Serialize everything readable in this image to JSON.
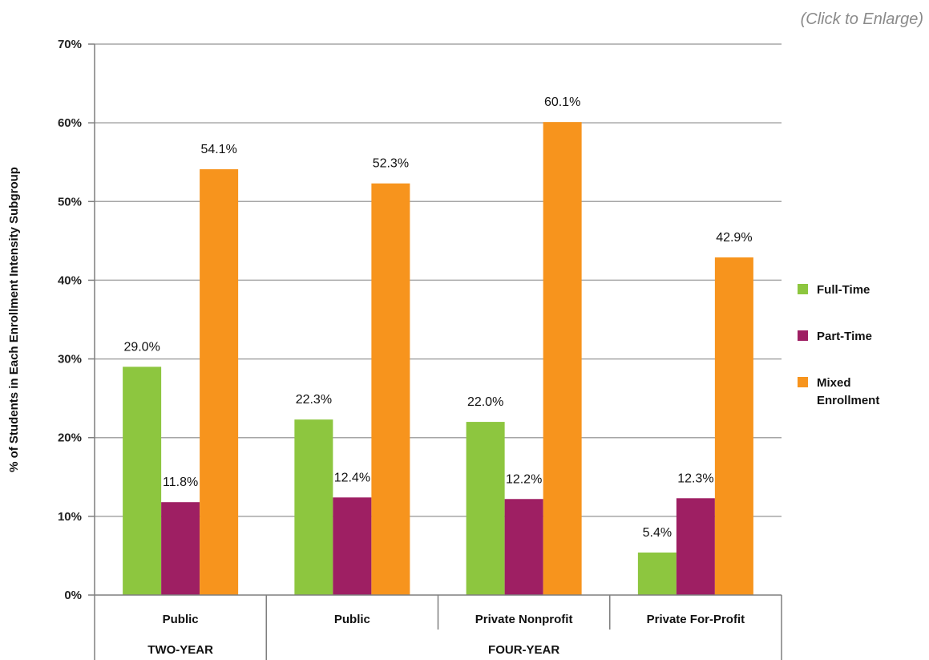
{
  "enlarge_label": "(Click to Enlarge)",
  "colors": {
    "full_time": "#8DC63F",
    "part_time": "#9E1F63",
    "mixed": "#F7941D",
    "grid": "#a6a6a6",
    "axis": "#7f7f7f"
  },
  "chart_data": {
    "type": "bar",
    "title": "",
    "xlabel": "",
    "ylabel": "% of Students in Each Enrollment Intensity Subgroup",
    "ylim": [
      0,
      70
    ],
    "yticks": [
      0,
      10,
      20,
      30,
      40,
      50,
      60,
      70
    ],
    "ytick_labels": [
      "0%",
      "10%",
      "20%",
      "30%",
      "40%",
      "50%",
      "60%",
      "70%"
    ],
    "grid": true,
    "legend_position": "right",
    "categories": [
      "Public",
      "Public",
      "Private Nonprofit",
      "Private For-Profit"
    ],
    "groups": [
      {
        "label": "TWO-YEAR",
        "categories": [
          0
        ]
      },
      {
        "label": "FOUR-YEAR",
        "categories": [
          1,
          2,
          3
        ]
      }
    ],
    "series": [
      {
        "name": "Full-Time",
        "color_key": "full_time",
        "values": [
          29.0,
          22.3,
          22.0,
          5.4
        ],
        "labels": [
          "29.0%",
          "22.3%",
          "22.0%",
          "5.4%"
        ]
      },
      {
        "name": "Part-Time",
        "color_key": "part_time",
        "values": [
          11.8,
          12.4,
          12.2,
          12.3
        ],
        "labels": [
          "11.8%",
          "12.4%",
          "12.2%",
          "12.3%"
        ]
      },
      {
        "name": "Mixed Enrollment",
        "color_key": "mixed",
        "values": [
          54.1,
          52.3,
          60.1,
          42.9
        ],
        "labels": [
          "54.1%",
          "52.3%",
          "60.1%",
          "42.9%"
        ]
      }
    ]
  }
}
